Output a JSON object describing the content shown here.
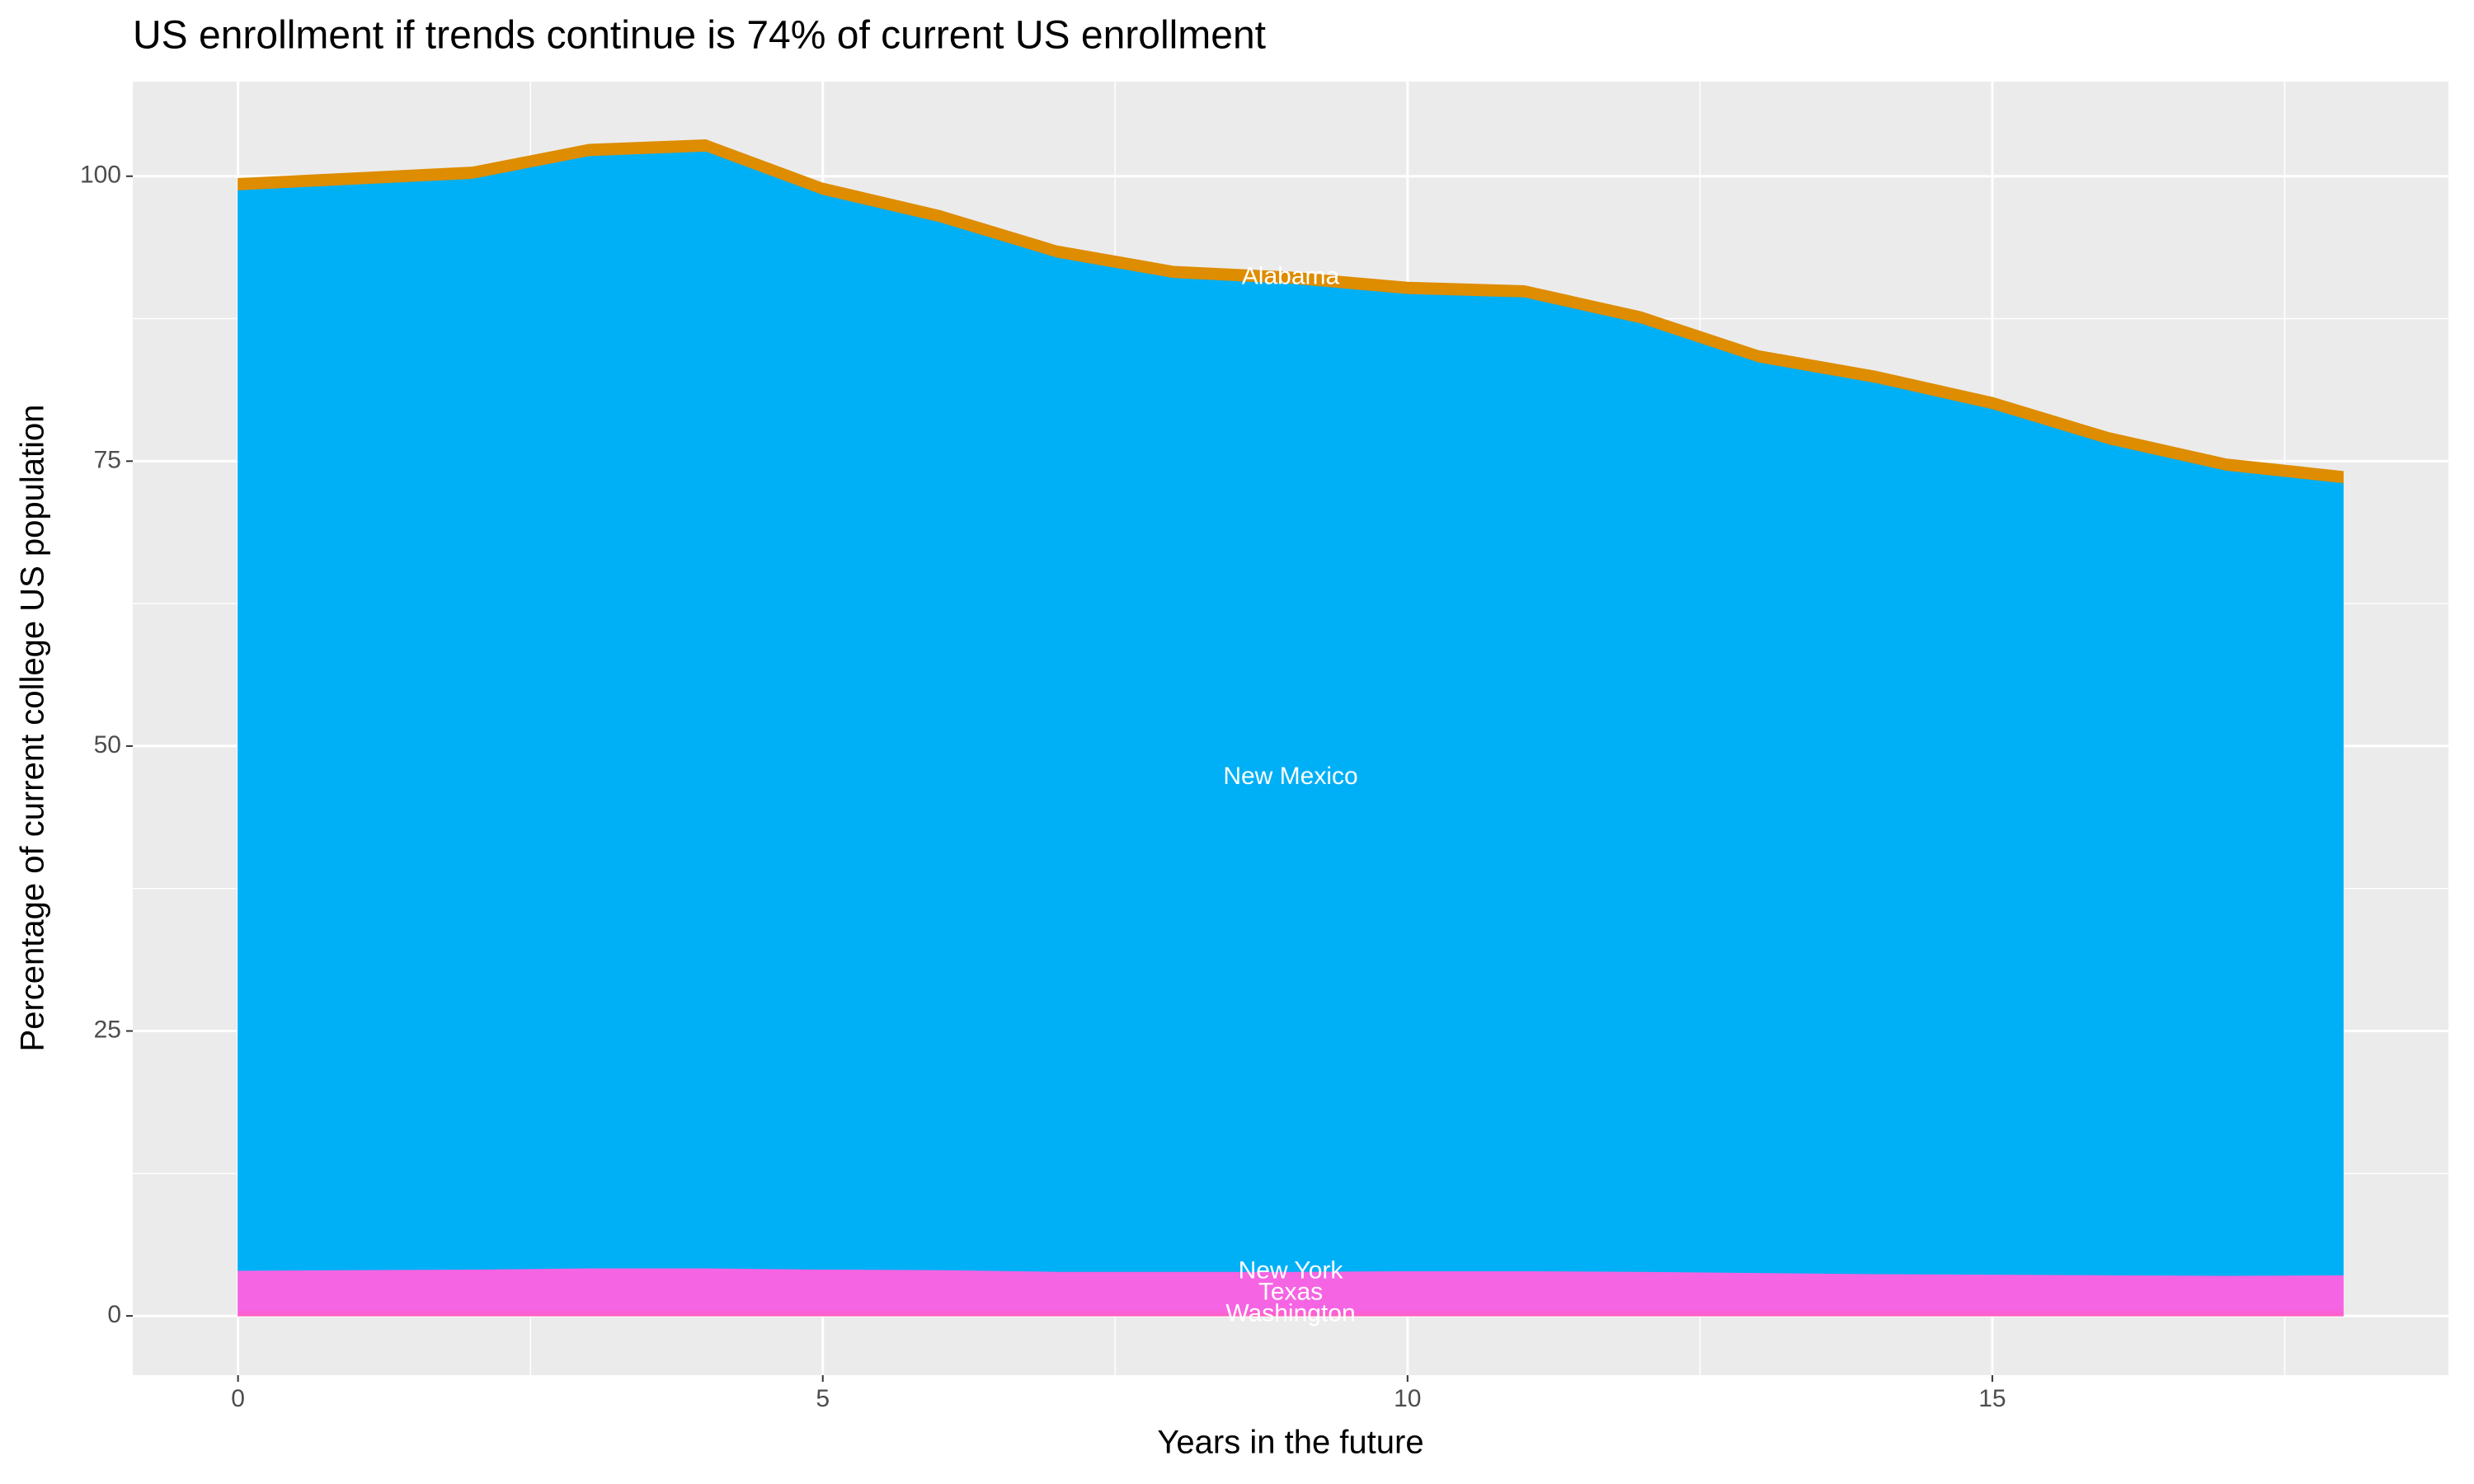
{
  "chart_data": {
    "type": "stacked_area",
    "title": "US enrollment if trends continue is 74% of current US enrollment",
    "x_label": "Years in the future",
    "y_label": "Percentage of current college US population",
    "x": [
      0,
      1,
      2,
      3,
      4,
      5,
      6,
      7,
      8,
      9,
      10,
      11,
      12,
      13,
      14,
      15,
      16,
      17,
      18
    ],
    "series": [
      {
        "name": "Washington",
        "color": "#ff61c3",
        "values": [
          0.2,
          0.2,
          0.2,
          0.2,
          0.2,
          0.2,
          0.2,
          0.2,
          0.2,
          0.2,
          0.2,
          0.2,
          0.2,
          0.2,
          0.2,
          0.2,
          0.2,
          0.2,
          0.2
        ]
      },
      {
        "name": "Texas",
        "color": "#fb61d7",
        "values": [
          0.3,
          0.3,
          0.3,
          0.3,
          0.3,
          0.3,
          0.3,
          0.3,
          0.3,
          0.3,
          0.3,
          0.3,
          0.3,
          0.3,
          0.3,
          0.3,
          0.3,
          0.3,
          0.3
        ]
      },
      {
        "name": "New York",
        "color": "#f564e3",
        "values": [
          3.5,
          3.55,
          3.6,
          3.7,
          3.7,
          3.6,
          3.55,
          3.4,
          3.4,
          3.4,
          3.45,
          3.45,
          3.4,
          3.3,
          3.2,
          3.15,
          3.1,
          3.05,
          3.1
        ]
      },
      {
        "name": "New Mexico",
        "color": "#00b0f6",
        "values": [
          94.8,
          95.25,
          95.7,
          97.6,
          98.0,
          94.3,
          91.95,
          89.0,
          87.2,
          86.7,
          85.75,
          85.45,
          83.2,
          79.9,
          78.2,
          75.95,
          72.9,
          70.65,
          69.5
        ]
      },
      {
        "name": "Alabama",
        "color": "#de8c00",
        "values": [
          1,
          1,
          1,
          1,
          1,
          1,
          1,
          1,
          1,
          1,
          1,
          1,
          1,
          1,
          1,
          1,
          1,
          1,
          1
        ]
      }
    ],
    "xlim": [
      -0.9,
      18.9
    ],
    "xticks": [
      0,
      5,
      10,
      15
    ],
    "ylim": [
      -5.2,
      108.3
    ],
    "yticks": [
      0,
      25,
      50,
      75,
      100
    ],
    "grid": true
  }
}
